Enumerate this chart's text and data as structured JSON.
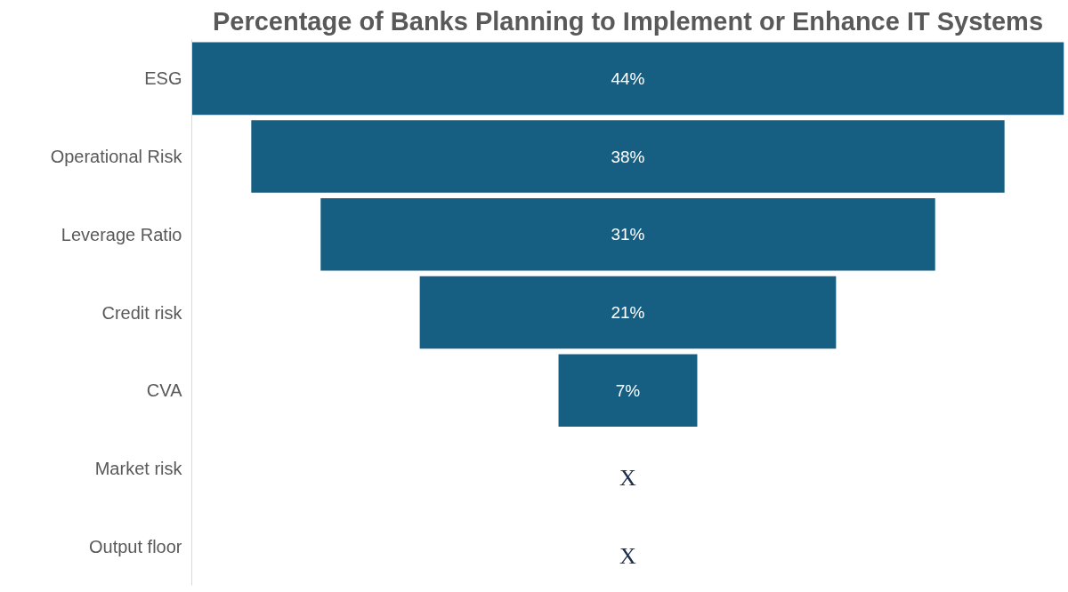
{
  "chart_data": {
    "type": "other",
    "title": "Percentage of Banks Planning to Implement or Enhance IT Systems",
    "categories": [
      "ESG",
      "Operational Risk",
      "Leverage Ratio",
      "Credit risk",
      "CVA",
      "Market risk",
      "Output floor"
    ],
    "values": [
      44,
      38,
      31,
      21,
      7,
      null,
      null
    ],
    "value_labels": [
      "44%",
      "38%",
      "31%",
      "21%",
      "7%",
      "X",
      "X"
    ],
    "color": "#175f82"
  }
}
